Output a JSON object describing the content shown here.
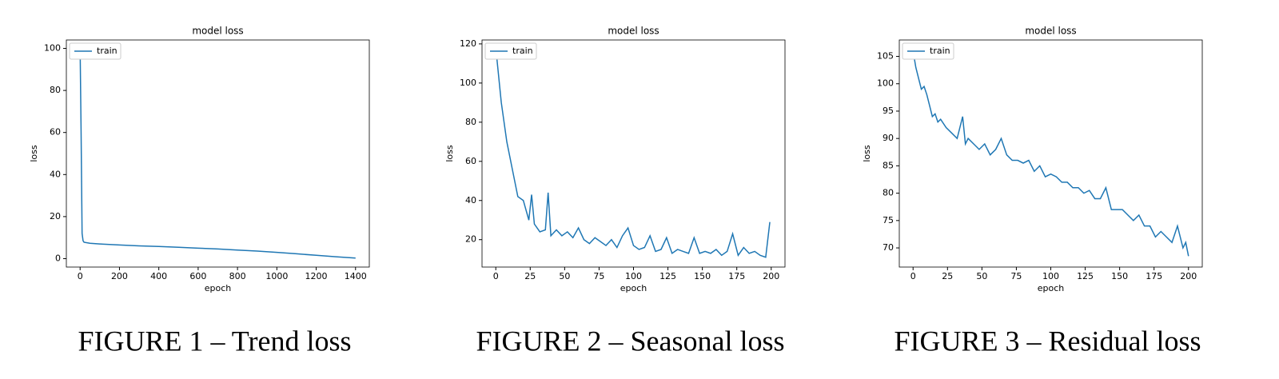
{
  "chart_data": [
    {
      "type": "line",
      "title": "model loss",
      "x_label": "epoch",
      "y_label": "loss",
      "caption": "FIGURE 1 – Trend loss",
      "legend": "upper left",
      "xlim": [
        -70,
        1470
      ],
      "ylim": [
        -4,
        104
      ],
      "xticks": [
        0,
        200,
        400,
        600,
        800,
        1000,
        1200,
        1400
      ],
      "yticks": [
        0,
        20,
        40,
        60,
        80,
        100
      ],
      "x": [
        0,
        5,
        10,
        15,
        20,
        50,
        100,
        200,
        300,
        400,
        500,
        600,
        700,
        800,
        900,
        1000,
        1100,
        1200,
        1300,
        1400
      ],
      "series": [
        {
          "name": "train",
          "color": "#1f77b4",
          "values": [
            100,
            60,
            12,
            8.5,
            7.8,
            7.3,
            7.0,
            6.5,
            6.1,
            5.8,
            5.4,
            5.0,
            4.6,
            4.1,
            3.6,
            3.0,
            2.3,
            1.6,
            0.9,
            0.3
          ]
        }
      ]
    },
    {
      "type": "line",
      "title": "model loss",
      "x_label": "epoch",
      "y_label": "loss",
      "caption": "FIGURE 2 – Seasonal loss",
      "legend": "upper left",
      "xlim": [
        -10,
        210
      ],
      "ylim": [
        6,
        122
      ],
      "xticks": [
        0,
        25,
        50,
        75,
        100,
        125,
        150,
        175,
        200
      ],
      "yticks": [
        20,
        40,
        60,
        80,
        100,
        120
      ],
      "x": [
        0,
        4,
        8,
        12,
        16,
        20,
        24,
        26,
        28,
        32,
        36,
        38,
        40,
        44,
        48,
        52,
        56,
        60,
        64,
        68,
        72,
        76,
        80,
        84,
        88,
        92,
        96,
        100,
        104,
        108,
        112,
        116,
        120,
        124,
        128,
        132,
        136,
        140,
        144,
        148,
        152,
        156,
        160,
        164,
        168,
        172,
        176,
        180,
        184,
        188,
        192,
        196,
        199
      ],
      "series": [
        {
          "name": "train",
          "color": "#1f77b4",
          "values": [
            118,
            90,
            70,
            56,
            42,
            40,
            30,
            43,
            28,
            24,
            25,
            44,
            22,
            25,
            22,
            24,
            21,
            26,
            20,
            18,
            21,
            19,
            17,
            20,
            16,
            22,
            26,
            17,
            15,
            16,
            22,
            14,
            15,
            21,
            13,
            15,
            14,
            13,
            21,
            13,
            14,
            13,
            15,
            12,
            14,
            23,
            12,
            16,
            13,
            14,
            12,
            11,
            29
          ]
        }
      ]
    },
    {
      "type": "line",
      "title": "model loss",
      "x_label": "epoch",
      "y_label": "loss",
      "caption": "FIGURE 3 – Residual loss",
      "legend": "upper left",
      "xlim": [
        -10,
        210
      ],
      "ylim": [
        66.5,
        108
      ],
      "xticks": [
        0,
        25,
        50,
        75,
        100,
        125,
        150,
        175,
        200
      ],
      "yticks": [
        70,
        75,
        80,
        85,
        90,
        95,
        100,
        105
      ],
      "x": [
        0,
        2,
        4,
        6,
        8,
        10,
        12,
        14,
        16,
        18,
        20,
        24,
        28,
        32,
        36,
        38,
        40,
        44,
        48,
        52,
        56,
        60,
        64,
        68,
        72,
        76,
        80,
        84,
        88,
        92,
        96,
        100,
        104,
        108,
        112,
        116,
        120,
        124,
        128,
        132,
        136,
        140,
        144,
        148,
        152,
        156,
        160,
        164,
        168,
        172,
        176,
        180,
        184,
        188,
        192,
        196,
        198,
        200
      ],
      "series": [
        {
          "name": "train",
          "color": "#1f77b4",
          "values": [
            106,
            103,
            101,
            99,
            99.5,
            98,
            96,
            94,
            94.5,
            93,
            93.5,
            92,
            91,
            90,
            94,
            89,
            90,
            89,
            88,
            89,
            87,
            88,
            90,
            87,
            86,
            86,
            85.5,
            86,
            84,
            85,
            83,
            83.5,
            83,
            82,
            82,
            81,
            81,
            80,
            80.5,
            79,
            79,
            81,
            77,
            77,
            77,
            76,
            75,
            76,
            74,
            74,
            72,
            73,
            72,
            71,
            74,
            70,
            71,
            68.5
          ]
        }
      ]
    }
  ]
}
